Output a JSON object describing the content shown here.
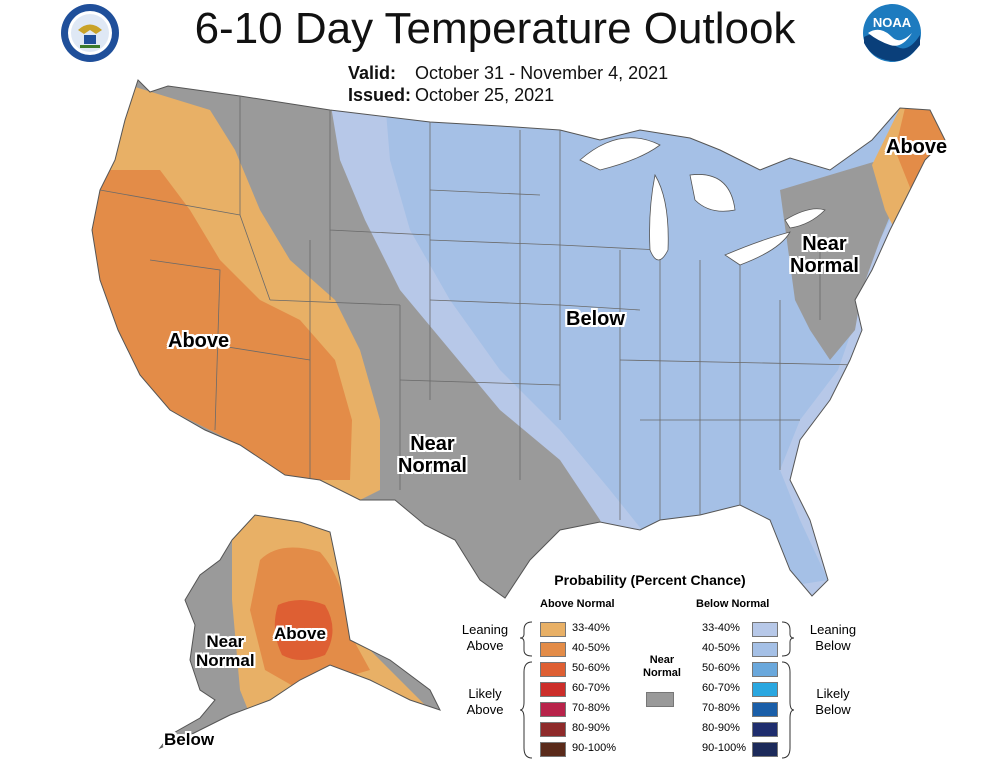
{
  "title": "6-10 Day Temperature Outlook",
  "valid_label": "Valid:",
  "valid_value": "October 31 - November 4, 2021",
  "issued_label": "Issued:",
  "issued_value": "October 25, 2021",
  "logos": {
    "left": "department-of-commerce-seal",
    "right": "noaa-logo",
    "noaa_text": "NOAA"
  },
  "map_labels": {
    "west_above": "Above",
    "central_near_1": "Near",
    "central_near_2": "Normal",
    "central_below": "Below",
    "ne_above": "Above",
    "ne_near_1": "Near",
    "ne_near_2": "Normal",
    "ak_above": "Above",
    "ak_near_1": "Near",
    "ak_near_2": "Normal",
    "ak_below": "Below"
  },
  "legend": {
    "title": "Probability (Percent Chance)",
    "above_header": "Above Normal",
    "below_header": "Below Normal",
    "near_1": "Near",
    "near_2": "Normal",
    "leaning_above_1": "Leaning",
    "leaning_above_2": "Above",
    "likely_above_1": "Likely",
    "likely_above_2": "Above",
    "leaning_below_1": "Leaning",
    "leaning_below_2": "Below",
    "likely_below_1": "Likely",
    "likely_below_2": "Below",
    "above": [
      {
        "label": "33-40%",
        "color": "#e8b066"
      },
      {
        "label": "40-50%",
        "color": "#e38c48"
      },
      {
        "label": "50-60%",
        "color": "#de5f33"
      },
      {
        "label": "60-70%",
        "color": "#cc2e2a"
      },
      {
        "label": "70-80%",
        "color": "#b8234a"
      },
      {
        "label": "80-90%",
        "color": "#8e2a2a"
      },
      {
        "label": "90-100%",
        "color": "#5a2a1a"
      }
    ],
    "below": [
      {
        "label": "33-40%",
        "color": "#b7c8e8"
      },
      {
        "label": "40-50%",
        "color": "#a5c0e6"
      },
      {
        "label": "50-60%",
        "color": "#6aa8dc"
      },
      {
        "label": "60-70%",
        "color": "#2aa7e0"
      },
      {
        "label": "70-80%",
        "color": "#1a5ea8"
      },
      {
        "label": "80-90%",
        "color": "#1f2d6e"
      },
      {
        "label": "90-100%",
        "color": "#1c2a5a"
      }
    ],
    "near_color": "#9a9a9a"
  }
}
